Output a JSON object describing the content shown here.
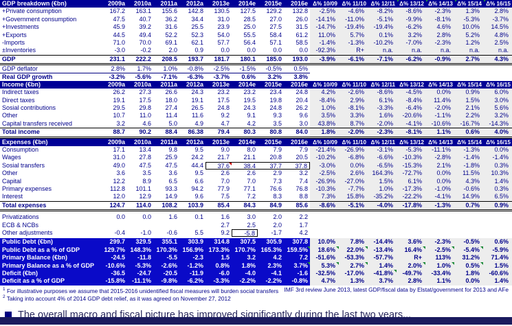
{
  "year_headers": [
    "2009a",
    "2010a",
    "2011a",
    "2012a",
    "2013e",
    "2014e",
    "2015e",
    "2016e"
  ],
  "delta_headers": [
    "Δ% 10/09",
    "Δ% 11/10",
    "Δ% 12/11",
    "Δ% 13/12",
    "Δ% 14/13",
    "Δ% 15/14",
    "Δ% 16/15"
  ],
  "sections": [
    {
      "title": "GDP breakdown (€bn)",
      "header_green_markers": [
        3,
        4,
        5,
        6
      ],
      "rows": [
        {
          "label": "+Private consumption",
          "values": [
            "167.2",
            "163.1",
            "155.6",
            "142.8",
            "130.5",
            "127.5",
            "129.2",
            "132.8"
          ],
          "deltas": [
            "-2.5%",
            "-4.6%",
            "-8.2%",
            "-8.6%",
            "-2.3%",
            "1.3%",
            "2.8%"
          ]
        },
        {
          "label": "+Government consumption",
          "values": [
            "47.5",
            "40.7",
            "36.2",
            "34.4",
            "31.0",
            "28.5",
            "27.0",
            "26.0"
          ],
          "deltas": [
            "-14.1%",
            "-11.0%",
            "-5.1%",
            "-9.9%",
            "-8.1%",
            "-5.3%",
            "-3.7%"
          ]
        },
        {
          "label": "+Investments",
          "values": [
            "45.9",
            "39.2",
            "31.6",
            "25.5",
            "23.9",
            "25.0",
            "27.5",
            "31.5"
          ],
          "deltas": [
            "-14.7%",
            "-19.4%",
            "-19.4%",
            "-6.2%",
            "4.6%",
            "10.0%",
            "14.5%"
          ]
        },
        {
          "label": "+Exports",
          "values": [
            "44.5",
            "49.4",
            "52.2",
            "52.3",
            "54.0",
            "55.5",
            "58.4",
            "61.2"
          ],
          "deltas": [
            "11.0%",
            "5.7%",
            "0.1%",
            "3.2%",
            "2.8%",
            "5.2%",
            "4.8%"
          ]
        },
        {
          "label": "-Imports",
          "values": [
            "71.0",
            "70.0",
            "69.1",
            "62.1",
            "57.7",
            "56.4",
            "57.1",
            "58.5"
          ],
          "deltas": [
            "-1.4%",
            "-1.3%",
            "-10.2%",
            "-7.0%",
            "-2.3%",
            "1.2%",
            "2.5%"
          ]
        },
        {
          "label": "±Inventories",
          "values": [
            "-3.0",
            "-0.2",
            "2.0",
            "0.9",
            "0.0",
            "0.0",
            "0.0",
            "0.0"
          ],
          "deltas": [
            "-92.3%",
            "R+",
            "n.a.",
            "n.a.",
            "n.a.",
            "n.a.",
            "n.a."
          ]
        },
        {
          "label": "GDP",
          "values": [
            "231.1",
            "222.2",
            "208.5",
            "193.7",
            "181.7",
            "180.1",
            "185.0",
            "193.0"
          ],
          "deltas": [
            "-3.9%",
            "-6.1%",
            "-7.1%",
            "-6.2%",
            "-0.9%",
            "2.7%",
            "4.3%"
          ],
          "style": "total"
        },
        {
          "label": "GDP deflator",
          "values": [
            "2.8%",
            "1.7%",
            "1.0%",
            "-0.8%",
            "-2.5%",
            "-1.5%",
            "-0.5%",
            "0.5%"
          ],
          "deltas": null,
          "style": "underline"
        },
        {
          "label": "Real GDP growth",
          "values": [
            "-3.2%",
            "-5.6%",
            "-7.1%",
            "-6.3%",
            "-3.7%",
            "0.6%",
            "3.2%",
            "3.8%"
          ],
          "deltas": null,
          "style": "bold-underline"
        }
      ]
    },
    {
      "title": "Income (€bn)",
      "rows": [
        {
          "label": "Indirect taxes",
          "values": [
            "26.2",
            "27.3",
            "26.6",
            "24.3",
            "23.2",
            "23.2",
            "23.4",
            "24.8"
          ],
          "deltas": [
            "4.2%",
            "-2.6%",
            "-8.6%",
            "-4.5%",
            "0.0%",
            "0.9%",
            "6.0%"
          ]
        },
        {
          "label": "Direct taxes",
          "values": [
            "19.1",
            "17.5",
            "18.0",
            "19.1",
            "17.5",
            "19.5",
            "19.8",
            "20.4"
          ],
          "deltas": [
            "-8.4%",
            "2.9%",
            "6.1%",
            "-8.4%",
            "11.4%",
            "1.5%",
            "3.0%"
          ]
        },
        {
          "label": "Sosial contributions",
          "values": [
            "29.5",
            "29.8",
            "27.4",
            "26.5",
            "24.8",
            "24.3",
            "24.8",
            "26.2"
          ],
          "deltas": [
            "1.0%",
            "-8.1%",
            "-3.3%",
            "-6.4%",
            "-2.0%",
            "2.1%",
            "5.6%"
          ]
        },
        {
          "label": "Other",
          "values": [
            "10.7",
            "11.0",
            "11.4",
            "11.6",
            "9.2",
            "9.1",
            "9.3",
            "9.6"
          ],
          "deltas": [
            "3.5%",
            "3.3%",
            "1.6%",
            "-20.6%",
            "-1.1%",
            "2.2%",
            "3.2%"
          ]
        },
        {
          "label": "Capital transfers received",
          "values": [
            "3.2",
            "4.6",
            "5.0",
            "4.9",
            "4.7",
            "4.2",
            "3.5",
            "3.0"
          ],
          "deltas": [
            "43.8%",
            "8.7%",
            "-2.0%",
            "-4.1%",
            "-10.6%",
            "-16.7%",
            "-14.3%"
          ]
        },
        {
          "label": "Total income",
          "values": [
            "88.7",
            "90.2",
            "88.4",
            "86.38",
            "79.4",
            "80.3",
            "80.8",
            "84.0"
          ],
          "deltas": [
            "1.8%",
            "-2.0%",
            "-2.3%",
            "-8.1%",
            "1.1%",
            "0.6%",
            "4.0%"
          ],
          "style": "total"
        }
      ]
    },
    {
      "title": "Expenses (€bn)",
      "rows": [
        {
          "label": "Consumption",
          "values": [
            "17.1",
            "13.4",
            "9.8",
            "9.5",
            "9.0",
            "8.0",
            "7.9",
            "7.9"
          ],
          "deltas": [
            "-21.4%",
            "-26.9%",
            "-3.1%",
            "-5.3%",
            "-11.1%",
            "-1.3%",
            "0.0%"
          ]
        },
        {
          "label": "Wages",
          "values": [
            "31.0",
            "27.8",
            "25.9",
            "24.2",
            "21.7",
            "21.1",
            "20.8",
            "20.5"
          ],
          "deltas": [
            "-10.2%",
            "-6.8%",
            "-6.6%",
            "-10.3%",
            "-2.8%",
            "-1.4%",
            "-1.4%"
          ]
        },
        {
          "label": "Sosial transfers",
          "values": [
            "49.0",
            "47.5",
            "47.5",
            "44.4",
            "37.6",
            "38.4",
            "37.7",
            "37.8"
          ],
          "deltas": [
            "-3.0%",
            "0.0%",
            "-6.5%",
            "-15.3%",
            "2.1%",
            "-1.8%",
            "0.3%"
          ],
          "box": [
            4,
            7
          ],
          "red_marker": 4
        },
        {
          "label": "Other",
          "values": [
            "3.6",
            "3.5",
            "3.6",
            "9.5",
            "2.6",
            "2.6",
            "2.9",
            "3.2"
          ],
          "deltas": [
            "-2.5%",
            "2.6%",
            "164.3%",
            "-72.7%",
            "0.0%",
            "11.5%",
            "10.3%"
          ]
        },
        {
          "label": "Capital",
          "values": [
            "12.2",
            "8.9",
            "6.5",
            "6.6",
            "7.0",
            "7.0",
            "7.3",
            "7.4"
          ],
          "deltas": [
            "-26.9%",
            "-27.0%",
            "1.5%",
            "6.1%",
            "0.0%",
            "4.3%",
            "1.4%"
          ]
        },
        {
          "label": "Primary expenses",
          "values": [
            "112.8",
            "101.1",
            "93.3",
            "94.2",
            "77.9",
            "77.1",
            "76.6",
            "76.8"
          ],
          "deltas": [
            "-10.3%",
            "-7.7%",
            "1.0%",
            "-17.3%",
            "-1.0%",
            "-0.6%",
            "0.3%"
          ]
        },
        {
          "label": "Interest",
          "values": [
            "12.0",
            "12.9",
            "14.9",
            "9.6",
            "7.5",
            "7.2",
            "8.3",
            "8.8"
          ],
          "deltas": [
            "7.3%",
            "15.8%",
            "-35.2%",
            "-22.2%",
            "-4.1%",
            "14.9%",
            "6.5%"
          ]
        },
        {
          "label": "Total expenses",
          "values": [
            "124.7",
            "114.0",
            "108.2",
            "103.9",
            "85.4",
            "84.3",
            "84.9",
            "85.6"
          ],
          "deltas": [
            "-8.6%",
            "-5.1%",
            "-4.0%",
            "-17.8%",
            "-1.3%",
            "0.7%",
            "0.9%"
          ],
          "style": "total"
        },
        {
          "label": "Privatizations",
          "values": [
            "0.0",
            "0.0",
            "1.6",
            "0.1",
            "1.6",
            "3.0",
            "2.0",
            "2.2"
          ],
          "deltas": null,
          "gap_before": true
        },
        {
          "label": "ECB & NCBs",
          "values": [
            "",
            "",
            "",
            "",
            "2.7",
            "2.5",
            "2.0",
            "1.7"
          ],
          "deltas": null
        },
        {
          "label": "Other adjustments",
          "values": [
            "-0.4",
            "-1.0",
            "-0.6",
            "5.5",
            "9.2",
            "-5.8",
            "-1.7",
            "4.2"
          ],
          "deltas": null,
          "box": [
            5,
            5
          ]
        }
      ]
    }
  ],
  "debt_rows": [
    {
      "label": "Public Debt (€bn)",
      "values": [
        "299.7",
        "329.5",
        "355.1",
        "303.9",
        "314.8",
        "307.5",
        "305.9",
        "307.8"
      ],
      "deltas": [
        "10.0%",
        "7.8%",
        "-14.4%",
        "3.6%",
        "-2.3%",
        "-0.5%",
        "0.6%"
      ]
    },
    {
      "label": "Public Debt as a % of GDP",
      "values": [
        "129.7%",
        "148.3%",
        "170.3%",
        "156.9%",
        "173.3%",
        "170.7%",
        "165.3%",
        "159.5%"
      ],
      "deltas": [
        "18.6%",
        "22.0%",
        "-13.4%",
        "16.4%",
        "-2.5%",
        "-5.4%",
        "-5.9%"
      ],
      "green_value_markers": [
        7
      ],
      "green_delta_markers": [
        0,
        1,
        3,
        4,
        5
      ]
    },
    {
      "label": "Primary Balance (€bn)",
      "values": [
        "-24.5",
        "-11.8",
        "-5.5",
        "-2.3",
        "1.5",
        "3.2",
        "4.2",
        "7.2"
      ],
      "deltas": [
        "-51.6%",
        "-53.3%",
        "-57.7%",
        "R+",
        "113%",
        "31.2%",
        "71.4%"
      ]
    },
    {
      "label": "Primary Balance as a % of GDP",
      "values": [
        "-10.6%",
        "-5.3%",
        "-2.6%",
        "-1.2%",
        "0.8%",
        "1.8%",
        "2.3%",
        "3.7%"
      ],
      "deltas": [
        "5.3%",
        "2.7%",
        "1.4%",
        "2.0%",
        "1.0%",
        "0.5%",
        "1.5%"
      ],
      "green_value_markers": [
        7
      ],
      "green_delta_markers": [
        0,
        1,
        3,
        4,
        5
      ]
    },
    {
      "label": "Deficit (€bn)",
      "values": [
        "-36.5",
        "-24.7",
        "-20.5",
        "-11.9",
        "-6.0",
        "-4.0",
        "-4.1",
        "-1.6"
      ],
      "deltas": [
        "-32.5%",
        "-17.0%",
        "-41.8%",
        "-49.7%",
        "-33.4%",
        "1.8%",
        "-60.6%"
      ],
      "green_delta_markers": [
        2
      ]
    },
    {
      "label": "Deficit as a % of GDP",
      "values": [
        "-15.8%",
        "-11.1%",
        "-9.8%",
        "-6.2%",
        "-3.3%",
        "-2.2%",
        "-2.2%",
        "-0.8%"
      ],
      "deltas": [
        "4.7%",
        "1.3%",
        "3.7%",
        "2.8%",
        "1.1%",
        "0.0%",
        "1.4%"
      ]
    }
  ],
  "footnotes": {
    "marker_1": "1",
    "note_1": "For illustrative purposes we assume that 2015-2016 unidentified fiscal measures will burden social transfers",
    "marker_2": "2",
    "note_2": "Taking into account 4% of 2014 GDP debt relief, as it was agreed on November 27, 2012",
    "source": "IMF 3rd review June 2013, latest GDP/fiscal data by Elstat/government for 2013 and AFe"
  },
  "bullet_text": "The overall macro and fiscal picture has improved significantly during the last two years...",
  "colors": {
    "section_bar": "#000096",
    "debt_background": "#0a0ac8",
    "delta_background": "#ededed",
    "text_navy": "#00008b",
    "comment_red": "#cc0000",
    "comment_green": "#1e8b3a",
    "bottom_bar": "#1b1b5e"
  }
}
